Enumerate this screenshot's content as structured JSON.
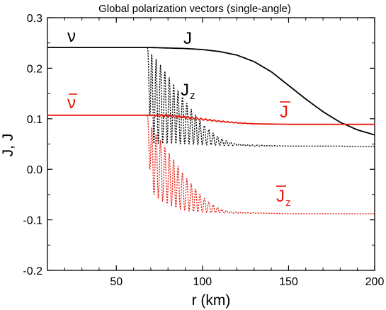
{
  "chart_data": {
    "type": "line",
    "title": "Global polarization vectors (single-angle)",
    "xlabel": "r (km)",
    "ylabel": "J, J",
    "xlim": [
      10,
      200
    ],
    "ylim": [
      -0.2,
      0.3
    ],
    "xticks": [
      50,
      100,
      150,
      200
    ],
    "yticks": [
      -0.2,
      -0.1,
      0.0,
      0.1,
      0.2,
      0.3
    ],
    "xtick_labels": [
      "50",
      "100",
      "150",
      "200"
    ],
    "ytick_labels": [
      "-0.2",
      "-0.1",
      "0.0",
      "0.1",
      "0.2",
      "0.3"
    ],
    "grid": false,
    "annotations": {
      "nu": "ν",
      "nubar": "ν",
      "J": "J",
      "Jz": "J",
      "Jz_sub": "z",
      "Jbar": "J",
      "Jbarz": "J",
      "Jbarz_sub": "z"
    },
    "colors": {
      "neutrino": "#000000",
      "antineutrino": "#e8190d"
    },
    "series": [
      {
        "color": "#000000",
        "style": "solid",
        "x": [
          10,
          60,
          70,
          80,
          90,
          100,
          110,
          120,
          130,
          140,
          150,
          160,
          170,
          180,
          190,
          200
        ],
        "y": [
          0.241,
          0.241,
          0.241,
          0.24,
          0.239,
          0.237,
          0.233,
          0.226,
          0.213,
          0.193,
          0.166,
          0.139,
          0.114,
          0.093,
          0.078,
          0.068
        ]
      },
      {
        "color": "#000000",
        "style": "dotted",
        "oscillating": true,
        "x": [
          68,
          70,
          75,
          80,
          85,
          90,
          95,
          100,
          105,
          110,
          115,
          120,
          130,
          140,
          150,
          160,
          170,
          180,
          190,
          200
        ],
        "y_upper": [
          0.241,
          0.23,
          0.21,
          0.185,
          0.16,
          0.135,
          0.112,
          0.09,
          0.075,
          0.062,
          0.055,
          0.05,
          0.048,
          0.047,
          0.046,
          0.046,
          0.046,
          0.046,
          0.045,
          0.045
        ],
        "y_lower": [
          0.241,
          0.05,
          0.05,
          0.05,
          0.05,
          0.05,
          0.049,
          0.048,
          0.048,
          0.047,
          0.047,
          0.047,
          0.046,
          0.046,
          0.046,
          0.046,
          0.046,
          0.046,
          0.045,
          0.045
        ]
      },
      {
        "color": "#e8190d",
        "style": "solid",
        "x": [
          10,
          68,
          80,
          90,
          100,
          110,
          120,
          130,
          150,
          170,
          200
        ],
        "y": [
          0.107,
          0.107,
          0.106,
          0.103,
          0.099,
          0.095,
          0.092,
          0.09,
          0.089,
          0.089,
          0.089
        ]
      },
      {
        "color": "#e8190d",
        "style": "dotted",
        "oscillating": true,
        "x": [
          68,
          70,
          75,
          80,
          85,
          90,
          95,
          100,
          105,
          110,
          115,
          120,
          130,
          140,
          150,
          160,
          170,
          180,
          190,
          200
        ],
        "y_upper": [
          0.107,
          0.085,
          0.06,
          0.035,
          0.01,
          -0.015,
          -0.035,
          -0.055,
          -0.068,
          -0.078,
          -0.083,
          -0.085,
          -0.086,
          -0.087,
          -0.088,
          -0.088,
          -0.088,
          -0.088,
          -0.088,
          -0.088
        ],
        "y_lower": [
          0.107,
          -0.045,
          -0.06,
          -0.07,
          -0.077,
          -0.082,
          -0.084,
          -0.085,
          -0.086,
          -0.086,
          -0.087,
          -0.087,
          -0.087,
          -0.087,
          -0.088,
          -0.088,
          -0.088,
          -0.088,
          -0.088,
          -0.088
        ]
      }
    ]
  }
}
